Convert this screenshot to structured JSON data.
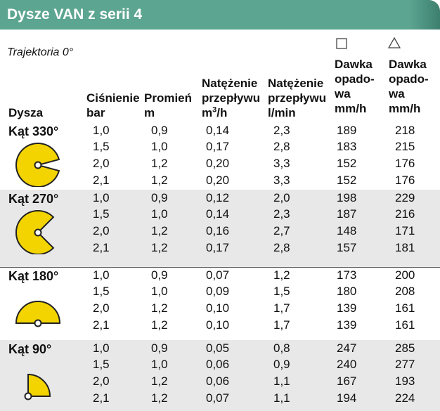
{
  "title": "Dysze VAN z serii 4",
  "trajectory": "Trajektoria 0°",
  "colors": {
    "title_bar": "#5ca591",
    "accent_edge": "#3d7f6e",
    "shaded_row": "#e8e8e9",
    "nozzle_fill": "#f3d400",
    "nozzle_stroke": "#222222"
  },
  "headers": {
    "dysza": "Dysza",
    "cisnienie": [
      "Ciśnienie",
      "bar"
    ],
    "promien": [
      "Promień",
      "m"
    ],
    "natezenie_m3": {
      "line1": "Natężenie",
      "line2": "przepływu",
      "unit": "m",
      "unit_sup": "3",
      "unit_rest": "/h"
    },
    "natezenie_lmin": [
      "Natężenie",
      "przepływu",
      "l/min"
    ],
    "dawka_square": [
      "Dawka",
      "opado-",
      "wa",
      "mm/h"
    ],
    "dawka_triangle": [
      "Dawka",
      "opado-",
      "wa",
      "mm/h"
    ]
  },
  "icons": {
    "square": "square-icon",
    "triangle": "triangle-icon"
  },
  "groups": [
    {
      "label": "Kąt 330°",
      "angle": 330,
      "rows": [
        [
          "1,0",
          "0,9",
          "0,14",
          "2,3",
          "189",
          "218"
        ],
        [
          "1,5",
          "1,0",
          "0,17",
          "2,8",
          "183",
          "215"
        ],
        [
          "2,0",
          "1,2",
          "0,20",
          "3,3",
          "152",
          "176"
        ],
        [
          "2,1",
          "1,2",
          "0,20",
          "3,3",
          "152",
          "176"
        ]
      ]
    },
    {
      "label": "Kąt 270°",
      "angle": 270,
      "rows": [
        [
          "1,0",
          "0,9",
          "0,12",
          "2,0",
          "198",
          "229"
        ],
        [
          "1,5",
          "1,0",
          "0,14",
          "2,3",
          "187",
          "216"
        ],
        [
          "2,0",
          "1,2",
          "0,16",
          "2,7",
          "148",
          "171"
        ],
        [
          "2,1",
          "1,2",
          "0,17",
          "2,8",
          "157",
          "181"
        ]
      ]
    },
    {
      "label": "Kąt 180°",
      "angle": 180,
      "rows": [
        [
          "1,0",
          "0,9",
          "0,07",
          "1,2",
          "173",
          "200"
        ],
        [
          "1,5",
          "1,0",
          "0,09",
          "1,5",
          "180",
          "208"
        ],
        [
          "2,0",
          "1,2",
          "0,10",
          "1,7",
          "139",
          "161"
        ],
        [
          "2,1",
          "1,2",
          "0,10",
          "1,7",
          "139",
          "161"
        ]
      ]
    },
    {
      "label": "Kąt 90°",
      "angle": 90,
      "rows": [
        [
          "1,0",
          "0,9",
          "0,05",
          "0,8",
          "247",
          "285"
        ],
        [
          "1,5",
          "1,0",
          "0,06",
          "0,9",
          "240",
          "277"
        ],
        [
          "2,0",
          "1,2",
          "0,06",
          "1,1",
          "167",
          "193"
        ],
        [
          "2,1",
          "1,2",
          "0,07",
          "1,1",
          "194",
          "224"
        ]
      ]
    }
  ]
}
